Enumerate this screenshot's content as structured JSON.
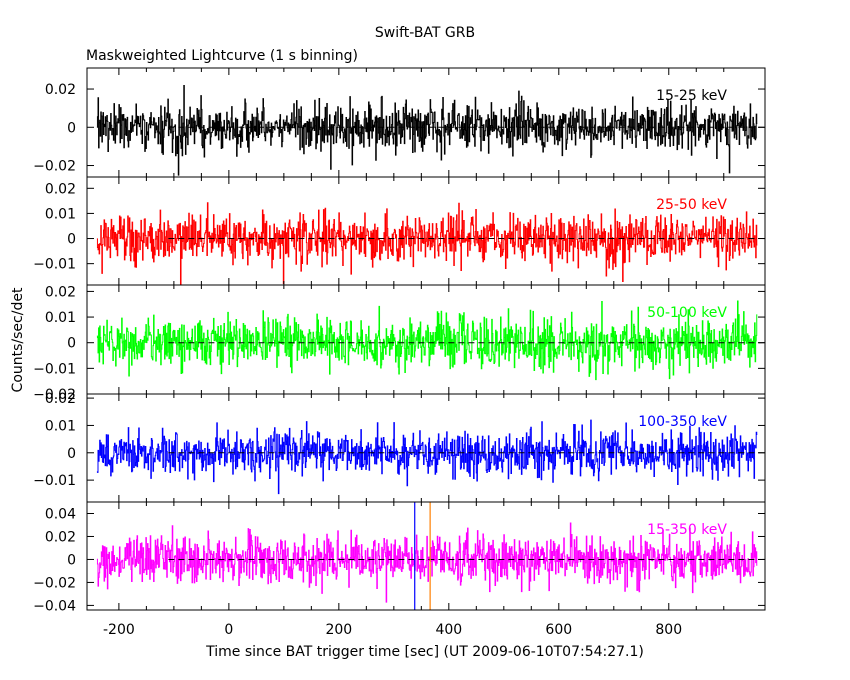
{
  "chart_data": {
    "type": "line",
    "title": "Swift-BAT GRB",
    "subtitle": "Maskweighted Lightcurve (1 s binning)",
    "xlabel": "Time since BAT trigger time [sec] (UT 2009-06-10T07:54:27.1)",
    "ylabel": "Counts/sec/det",
    "xlim": [
      -258,
      975
    ],
    "xticks": [
      "-200",
      "0",
      "200",
      "400",
      "600",
      "800"
    ],
    "binning_sec": 1,
    "data_range": [
      -240,
      960
    ],
    "grid": false,
    "reference_line_y": 0,
    "reference_line_start_x": -110,
    "vertical_markers": [
      {
        "x": 338,
        "color": "#0000ff"
      },
      {
        "x": 366,
        "color": "#ff7f00"
      }
    ],
    "panels": [
      {
        "name": "15-25 keV",
        "color": "#000000",
        "ylim": [
          -0.026,
          0.031
        ],
        "yticks": [
          -0.02,
          0,
          0.02
        ],
        "ytick_labels": [
          "−0.02",
          "0",
          "0.02"
        ],
        "mean": 0,
        "sigma": 0.0065
      },
      {
        "name": "25-50 keV",
        "color": "#ff0000",
        "ylim": [
          -0.0185,
          0.0245
        ],
        "yticks": [
          -0.01,
          0,
          0.01,
          0.02
        ],
        "ytick_labels": [
          "−0.01",
          "0",
          "0.01",
          "0.02"
        ],
        "mean": 0,
        "sigma": 0.005
      },
      {
        "name": "50-100 keV",
        "color": "#00ff00",
        "ylim": [
          -0.02,
          0.0225
        ],
        "yticks": [
          -0.02,
          -0.01,
          0,
          0.01,
          0.02
        ],
        "ytick_labels": [
          "−0.02",
          "−0.01",
          "0",
          "0.01",
          "0.02"
        ],
        "mean": 0,
        "sigma": 0.005
      },
      {
        "name": "100-350 keV",
        "color": "#0000ff",
        "ylim": [
          -0.018,
          0.0215
        ],
        "yticks": [
          -0.01,
          0,
          0.01,
          0.02
        ],
        "ytick_labels": [
          "−0.01",
          "0",
          "0.01",
          "0.02"
        ],
        "mean": 0,
        "sigma": 0.0042
      },
      {
        "name": "15-350 keV",
        "color": "#ff00ff",
        "ylim": [
          -0.044,
          0.05
        ],
        "yticks": [
          -0.04,
          -0.02,
          0,
          0.02,
          0.04
        ],
        "ytick_labels": [
          "−0.04",
          "−0.02",
          "0",
          "0.02",
          "0.04"
        ],
        "mean": 0,
        "sigma": 0.0105
      }
    ]
  }
}
